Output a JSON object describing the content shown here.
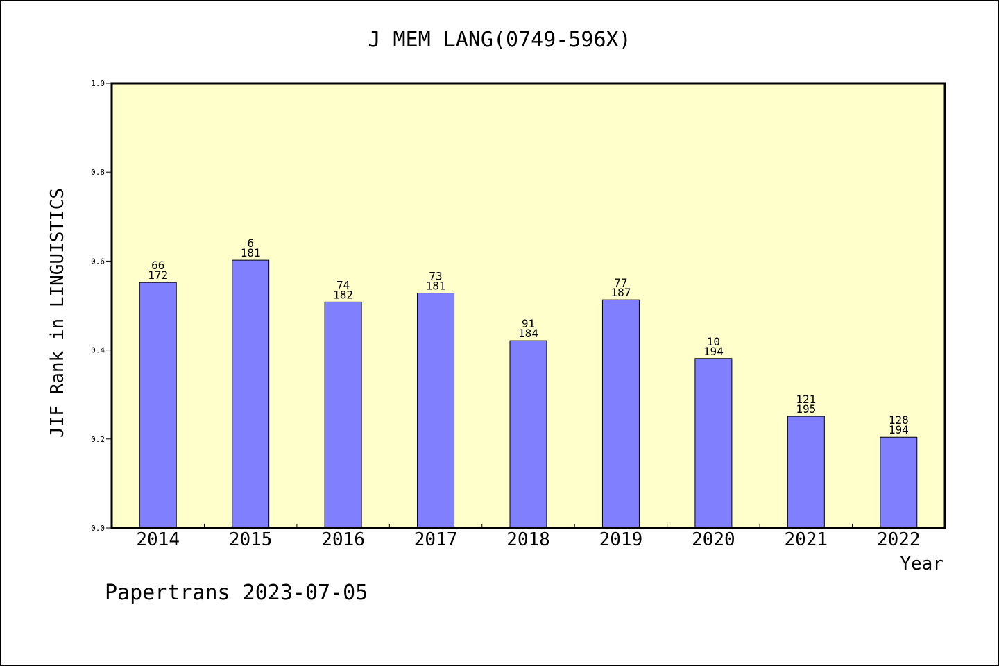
{
  "chart_data": {
    "type": "bar",
    "title": "J MEM LANG(0749-596X)",
    "xlabel": "Year",
    "ylabel": "JIF Rank in LINGUISTICS",
    "categories": [
      "2014",
      "2015",
      "2016",
      "2017",
      "2018",
      "2019",
      "2020",
      "2021",
      "2022"
    ],
    "values": [
      0.552,
      0.602,
      0.508,
      0.528,
      0.421,
      0.513,
      0.381,
      0.251,
      0.204
    ],
    "rank_labels": [
      "66",
      "6",
      "74",
      "73",
      "91",
      "77",
      "10",
      "121",
      "128"
    ],
    "total_labels": [
      "172",
      "181",
      "182",
      "181",
      "184",
      "187",
      "194",
      "195",
      "194"
    ],
    "ylim": [
      0,
      1.0
    ],
    "yticks": [
      "0.0",
      "0.2",
      "0.4",
      "0.6",
      "0.8",
      "1.0"
    ],
    "grid": false,
    "legend": "none",
    "colors": {
      "bar": "#8080ff",
      "plot_bg": "#ffffcc",
      "axis": "#000000"
    }
  },
  "footer": {
    "text": "Papertrans 2023-07-05"
  }
}
